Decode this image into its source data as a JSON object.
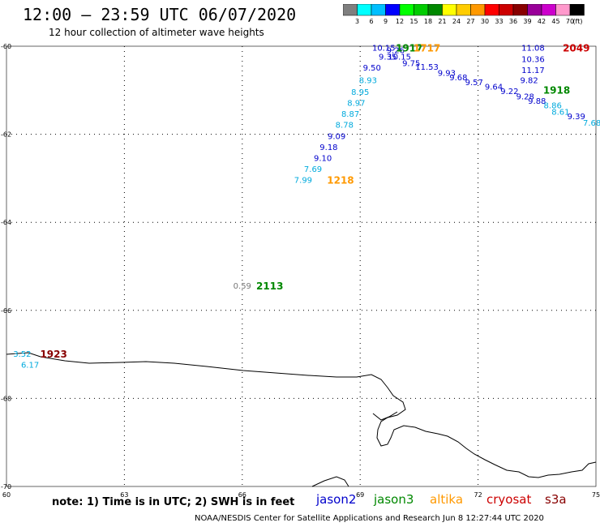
{
  "title": "12:00 – 23:59 UTC 06/07/2020",
  "subtitle": "12 hour collection of altimeter wave heights",
  "scale": {
    "unit": "(ft)",
    "ticks": [
      "3",
      "6",
      "9",
      "12",
      "15",
      "18",
      "21",
      "24",
      "27",
      "30",
      "33",
      "36",
      "39",
      "42",
      "45",
      "70"
    ],
    "colors": [
      "#7f7f7f",
      "#00ffff",
      "#00bfff",
      "#0000ff",
      "#00ff00",
      "#00cc00",
      "#008800",
      "#ffff00",
      "#ffcc00",
      "#ff9900",
      "#ff0000",
      "#cc0000",
      "#880000",
      "#990099",
      "#cc00cc",
      "#ff99cc",
      "#000000"
    ]
  },
  "axes": {
    "lat_labels": [
      "-60",
      "-62",
      "-64",
      "-66",
      "-68",
      "-70"
    ],
    "lon_labels": [
      "60",
      "63",
      "66",
      "69",
      "72",
      "75"
    ],
    "lat_range": [
      -60,
      -70
    ],
    "lon_range": [
      60,
      75
    ]
  },
  "colors": {
    "jason2": "#0000cc",
    "jason3": "#008800",
    "altika": "#ff9900",
    "cryosat": "#cc0000",
    "s3a": "#880000",
    "cyan": "#00aadd",
    "gray": "#777777"
  },
  "observations": [
    {
      "text": "10.15",
      "lon": 69.6,
      "lat": -60.05,
      "color": "#0000cc"
    },
    {
      "text": "9.26",
      "lon": 69.9,
      "lat": -60.1,
      "color": "#0000cc"
    },
    {
      "text": "10.15",
      "lon": 70.0,
      "lat": -60.25,
      "color": "#0000cc"
    },
    {
      "text": "9.35",
      "lon": 69.7,
      "lat": -60.25,
      "color": "#0000cc"
    },
    {
      "text": "9.75",
      "lon": 70.3,
      "lat": -60.4,
      "color": "#0000cc"
    },
    {
      "text": "11.53",
      "lon": 70.7,
      "lat": -60.48,
      "color": "#0000cc"
    },
    {
      "text": "9.93",
      "lon": 71.2,
      "lat": -60.62,
      "color": "#0000cc"
    },
    {
      "text": "9.68",
      "lon": 71.5,
      "lat": -60.72,
      "color": "#0000cc"
    },
    {
      "text": "9.57",
      "lon": 71.9,
      "lat": -60.83,
      "color": "#0000cc"
    },
    {
      "text": "9.64",
      "lon": 72.4,
      "lat": -60.93,
      "color": "#0000cc"
    },
    {
      "text": "9.22",
      "lon": 72.8,
      "lat": -61.03,
      "color": "#0000cc"
    },
    {
      "text": "9.28",
      "lon": 73.2,
      "lat": -61.15,
      "color": "#0000cc"
    },
    {
      "text": "9.88",
      "lon": 73.5,
      "lat": -61.25,
      "color": "#0000cc"
    },
    {
      "text": "8.86",
      "lon": 73.9,
      "lat": -61.35,
      "color": "#00aadd"
    },
    {
      "text": "8.61",
      "lon": 74.1,
      "lat": -61.5,
      "color": "#00aadd"
    },
    {
      "text": "9.39",
      "lon": 74.5,
      "lat": -61.6,
      "color": "#0000cc"
    },
    {
      "text": "7.68",
      "lon": 74.9,
      "lat": -61.75,
      "color": "#00aadd"
    },
    {
      "text": "9.50",
      "lon": 69.3,
      "lat": -60.5,
      "color": "#0000cc"
    },
    {
      "text": "8.93",
      "lon": 69.2,
      "lat": -60.78,
      "color": "#00aadd"
    },
    {
      "text": "8.95",
      "lon": 69.0,
      "lat": -61.05,
      "color": "#00aadd"
    },
    {
      "text": "8.97",
      "lon": 68.9,
      "lat": -61.3,
      "color": "#00aadd"
    },
    {
      "text": "8.87",
      "lon": 68.75,
      "lat": -61.55,
      "color": "#00aadd"
    },
    {
      "text": "8.78",
      "lon": 68.6,
      "lat": -61.8,
      "color": "#00aadd"
    },
    {
      "text": "9.09",
      "lon": 68.4,
      "lat": -62.05,
      "color": "#0000cc"
    },
    {
      "text": "9.18",
      "lon": 68.2,
      "lat": -62.3,
      "color": "#0000cc"
    },
    {
      "text": "9.10",
      "lon": 68.05,
      "lat": -62.55,
      "color": "#0000cc"
    },
    {
      "text": "7.69",
      "lon": 67.8,
      "lat": -62.8,
      "color": "#00aadd"
    },
    {
      "text": "7.99",
      "lon": 67.55,
      "lat": -63.05,
      "color": "#00aadd"
    },
    {
      "text": "11.08",
      "lon": 73.4,
      "lat": -60.05,
      "color": "#0000cc"
    },
    {
      "text": "10.36",
      "lon": 73.4,
      "lat": -60.3,
      "color": "#0000cc"
    },
    {
      "text": "11.17",
      "lon": 73.4,
      "lat": -60.55,
      "color": "#0000cc"
    },
    {
      "text": "9.82",
      "lon": 73.3,
      "lat": -60.78,
      "color": "#0000cc"
    },
    {
      "text": "0.59",
      "lon": 66.0,
      "lat": -65.45,
      "color": "#777777"
    },
    {
      "text": "3.52",
      "lon": 60.4,
      "lat": -67.0,
      "color": "#00aadd"
    },
    {
      "text": "6.17",
      "lon": 60.6,
      "lat": -67.25,
      "color": "#00aadd"
    }
  ],
  "time_labels": [
    {
      "text": "1917",
      "lon": 70.25,
      "lat": -60.05,
      "color": "#008800"
    },
    {
      "text": "1717",
      "lon": 70.7,
      "lat": -60.05,
      "color": "#ff9900"
    },
    {
      "text": "2049",
      "lon": 74.5,
      "lat": -60.05,
      "color": "#cc0000"
    },
    {
      "text": "1918",
      "lon": 74.0,
      "lat": -61.0,
      "color": "#008800"
    },
    {
      "text": "1218",
      "lon": 68.5,
      "lat": -63.05,
      "color": "#ff9900"
    },
    {
      "text": "2113",
      "lon": 66.7,
      "lat": -65.45,
      "color": "#008800"
    },
    {
      "text": "1923",
      "lon": 61.2,
      "lat": -67.0,
      "color": "#880000"
    }
  ],
  "note": "note: 1) Time is in UTC; 2) SWH is in feet",
  "legend": [
    {
      "name": "jason2",
      "color": "#0000cc"
    },
    {
      "name": "jason3",
      "color": "#008800"
    },
    {
      "name": "altika",
      "color": "#ff9900"
    },
    {
      "name": "cryosat",
      "color": "#cc0000"
    },
    {
      "name": "s3a",
      "color": "#880000"
    }
  ],
  "credit": "NOAA/NESDIS Center for Satellite Applications and Research    Jun  8 12:27:44 UTC 2020"
}
